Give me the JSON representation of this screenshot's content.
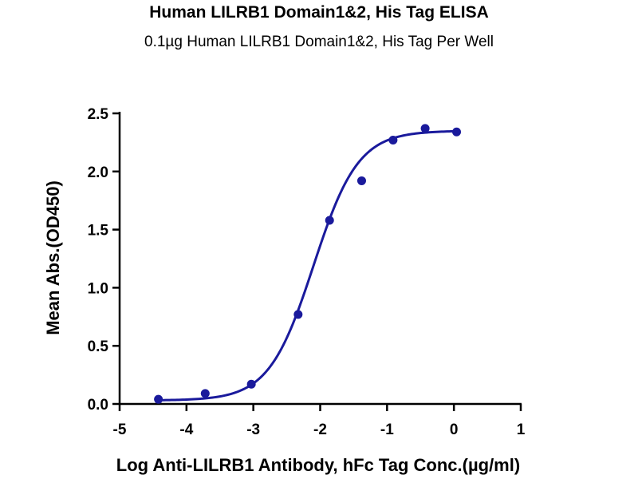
{
  "chart_data": {
    "type": "scatter",
    "title": "Human LILRB1 Domain1&2, His Tag ELISA",
    "subtitle": "0.1µg Human LILRB1 Domain1&2, His Tag Per Well",
    "xlabel": "Log Anti-LILRB1 Antibody, hFc Tag Conc.(µg/ml)",
    "ylabel": "Mean Abs.(OD450)",
    "xlim": [
      -5,
      1
    ],
    "ylim": [
      0,
      2.5
    ],
    "xticks": [
      "-5",
      "-4",
      "-3",
      "-2",
      "-1",
      "0",
      "1"
    ],
    "yticks": [
      "0.0",
      "0.5",
      "1.0",
      "1.5",
      "2.0",
      "2.5"
    ],
    "grid": false,
    "series": [
      {
        "color": "#1a1a9c",
        "x": [
          -4.42,
          -3.72,
          -3.03,
          -2.33,
          -1.86,
          -1.38,
          -0.91,
          -0.43,
          0.04
        ],
        "y": [
          0.04,
          0.09,
          0.17,
          0.77,
          1.58,
          1.92,
          2.27,
          2.37,
          2.34
        ]
      }
    ],
    "fit_curve": {
      "type": "4PL",
      "bottom": 0.03,
      "top": 2.35,
      "log_ec50": -2.1,
      "hill_slope": 1.3
    }
  }
}
